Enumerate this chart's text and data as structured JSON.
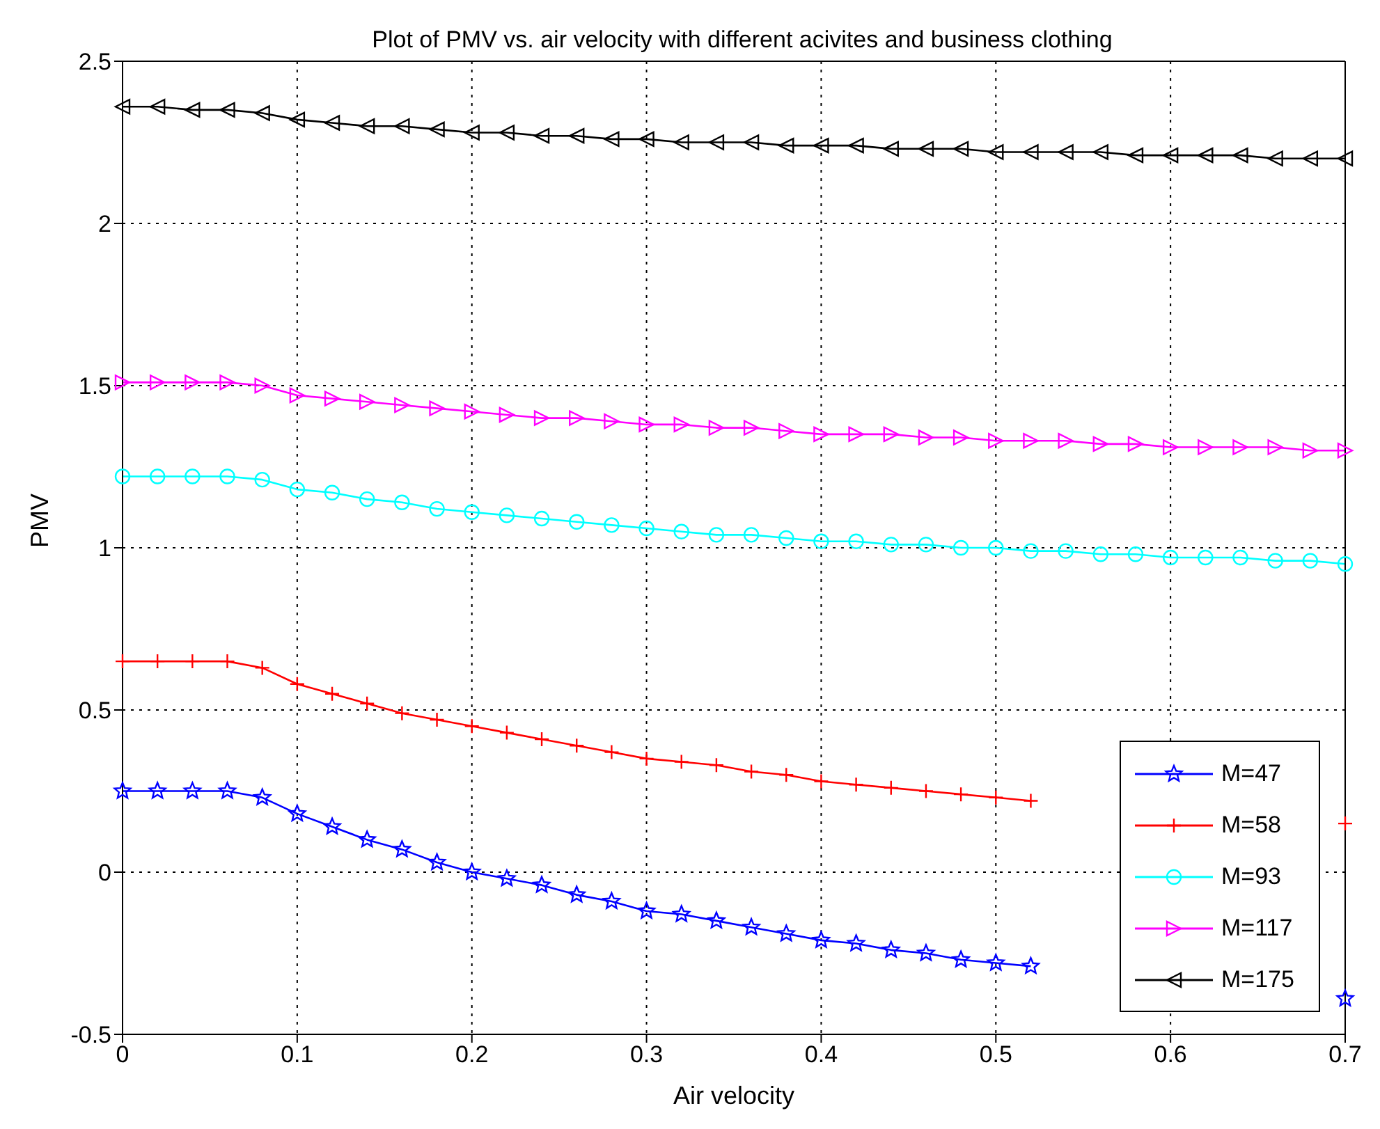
{
  "chart_data": {
    "type": "line",
    "title": "Plot of PMV vs. air velocity with different acivites and business clothing",
    "xlabel": "Air velocity",
    "ylabel": "PMV",
    "x": [
      0,
      0.02,
      0.04,
      0.06,
      0.08,
      0.1,
      0.12,
      0.14,
      0.16,
      0.18,
      0.2,
      0.22,
      0.24,
      0.26,
      0.28,
      0.3,
      0.32,
      0.34,
      0.36,
      0.38,
      0.4,
      0.42,
      0.44,
      0.46,
      0.48,
      0.5,
      0.52,
      0.54,
      0.56,
      0.58,
      0.6,
      0.62,
      0.64,
      0.66,
      0.68,
      0.7
    ],
    "series": [
      {
        "name": "M=47",
        "color": "#0000ff",
        "marker": "star",
        "values": [
          0.25,
          0.25,
          0.25,
          0.25,
          0.23,
          0.18,
          0.14,
          0.1,
          0.07,
          0.03,
          0.0,
          -0.02,
          -0.04,
          -0.07,
          -0.09,
          -0.12,
          -0.13,
          -0.15,
          -0.17,
          -0.19,
          -0.21,
          -0.22,
          -0.24,
          -0.25,
          -0.27,
          -0.28,
          -0.29,
          null,
          null,
          null,
          null,
          null,
          null,
          null,
          null,
          -0.39
        ]
      },
      {
        "name": "M=58",
        "color": "#ff0000",
        "marker": "cross",
        "values": [
          0.65,
          0.65,
          0.65,
          0.65,
          0.63,
          0.58,
          0.55,
          0.52,
          0.49,
          0.47,
          0.45,
          0.43,
          0.41,
          0.39,
          0.37,
          0.35,
          0.34,
          0.33,
          0.31,
          0.3,
          0.28,
          0.27,
          0.26,
          0.25,
          0.24,
          0.23,
          0.22,
          null,
          null,
          null,
          null,
          null,
          null,
          null,
          null,
          0.15
        ]
      },
      {
        "name": "M=93",
        "color": "#00ffff",
        "marker": "circle",
        "values": [
          1.22,
          1.22,
          1.22,
          1.22,
          1.21,
          1.18,
          1.17,
          1.15,
          1.14,
          1.12,
          1.11,
          1.1,
          1.09,
          1.08,
          1.07,
          1.06,
          1.05,
          1.04,
          1.04,
          1.03,
          1.02,
          1.02,
          1.01,
          1.01,
          1.0,
          1.0,
          0.99,
          0.99,
          0.98,
          0.98,
          0.97,
          0.97,
          0.97,
          0.96,
          0.96,
          0.95
        ]
      },
      {
        "name": "M=117",
        "color": "#ff00ff",
        "marker": "triangle-right",
        "values": [
          1.51,
          1.51,
          1.51,
          1.51,
          1.5,
          1.47,
          1.46,
          1.45,
          1.44,
          1.43,
          1.42,
          1.41,
          1.4,
          1.4,
          1.39,
          1.38,
          1.38,
          1.37,
          1.37,
          1.36,
          1.35,
          1.35,
          1.35,
          1.34,
          1.34,
          1.33,
          1.33,
          1.33,
          1.32,
          1.32,
          1.31,
          1.31,
          1.31,
          1.31,
          1.3,
          1.3
        ]
      },
      {
        "name": "M=175",
        "color": "#000000",
        "marker": "triangle-left",
        "values": [
          2.36,
          2.36,
          2.35,
          2.35,
          2.34,
          2.32,
          2.31,
          2.3,
          2.3,
          2.29,
          2.28,
          2.28,
          2.27,
          2.27,
          2.26,
          2.26,
          2.25,
          2.25,
          2.25,
          2.24,
          2.24,
          2.24,
          2.23,
          2.23,
          2.23,
          2.22,
          2.22,
          2.22,
          2.22,
          2.21,
          2.21,
          2.21,
          2.21,
          2.2,
          2.2,
          2.2
        ]
      }
    ],
    "xlim": [
      0,
      0.7
    ],
    "xticks": [
      0,
      0.1,
      0.2,
      0.3,
      0.4,
      0.5,
      0.6,
      0.7
    ],
    "ylim": [
      -0.5,
      2.5
    ],
    "yticks": [
      -0.5,
      0,
      0.5,
      1,
      1.5,
      2,
      2.5
    ],
    "grid": true,
    "legend": "bottom right",
    "line_style": "solid"
  }
}
